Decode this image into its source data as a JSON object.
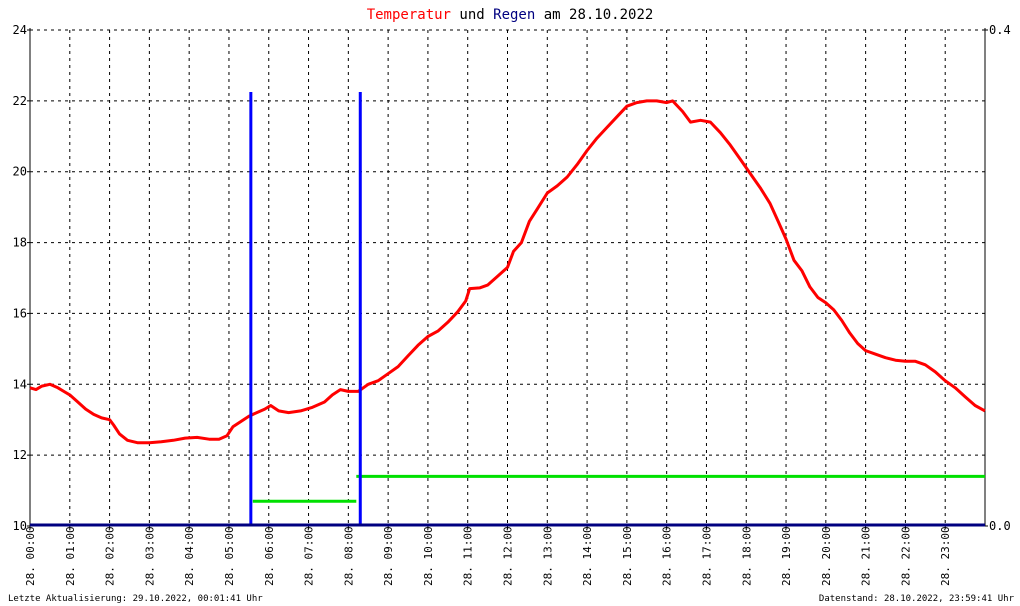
{
  "chart_data": {
    "type": "line",
    "title": {
      "parts": [
        {
          "text": "Temperatur",
          "color": "#ff0000"
        },
        {
          "text": " und ",
          "color": "#000000"
        },
        {
          "text": "Regen",
          "color": "#000080"
        },
        {
          "text": " am 28.10.2022",
          "color": "#000000"
        }
      ]
    },
    "grid": true,
    "y_left": {
      "range": [
        10,
        24
      ],
      "ticks": [
        "10",
        "12",
        "14",
        "16",
        "18",
        "20",
        "22",
        "24"
      ]
    },
    "y_right": {
      "range": [
        0.0,
        0.4
      ],
      "ticks": [
        "0.0",
        "0.4"
      ]
    },
    "x": {
      "range_hours": [
        0,
        24
      ],
      "ticks": [
        "28. 00:00",
        "28. 01:00",
        "28. 02:00",
        "28. 03:00",
        "28. 04:00",
        "28. 05:00",
        "28. 06:00",
        "28. 07:00",
        "28. 08:00",
        "28. 09:00",
        "28. 10:00",
        "28. 11:00",
        "28. 12:00",
        "28. 13:00",
        "28. 14:00",
        "28. 15:00",
        "28. 16:00",
        "28. 17:00",
        "28. 18:00",
        "28. 19:00",
        "28. 20:00",
        "28. 21:00",
        "28. 22:00",
        "28. 23:00"
      ]
    },
    "series": [
      {
        "kind": "temperature",
        "axis": "left",
        "color": "#ff0000",
        "points": [
          [
            0.0,
            13.9
          ],
          [
            0.15,
            13.85
          ],
          [
            0.3,
            13.95
          ],
          [
            0.5,
            14.0
          ],
          [
            0.7,
            13.9
          ],
          [
            0.85,
            13.8
          ],
          [
            1.0,
            13.7
          ],
          [
            1.2,
            13.5
          ],
          [
            1.4,
            13.3
          ],
          [
            1.6,
            13.15
          ],
          [
            1.8,
            13.05
          ],
          [
            2.0,
            13.0
          ],
          [
            2.1,
            12.85
          ],
          [
            2.25,
            12.6
          ],
          [
            2.45,
            12.42
          ],
          [
            2.7,
            12.35
          ],
          [
            3.0,
            12.35
          ],
          [
            3.3,
            12.38
          ],
          [
            3.6,
            12.42
          ],
          [
            3.9,
            12.48
          ],
          [
            4.2,
            12.5
          ],
          [
            4.5,
            12.45
          ],
          [
            4.75,
            12.45
          ],
          [
            4.95,
            12.55
          ],
          [
            5.1,
            12.8
          ],
          [
            5.3,
            12.95
          ],
          [
            5.5,
            13.1
          ],
          [
            5.7,
            13.2
          ],
          [
            5.9,
            13.3
          ],
          [
            6.05,
            13.4
          ],
          [
            6.25,
            13.25
          ],
          [
            6.5,
            13.2
          ],
          [
            6.8,
            13.25
          ],
          [
            7.1,
            13.35
          ],
          [
            7.4,
            13.5
          ],
          [
            7.6,
            13.7
          ],
          [
            7.8,
            13.85
          ],
          [
            8.0,
            13.8
          ],
          [
            8.25,
            13.8
          ],
          [
            8.5,
            14.0
          ],
          [
            8.75,
            14.1
          ],
          [
            9.0,
            14.3
          ],
          [
            9.25,
            14.5
          ],
          [
            9.5,
            14.8
          ],
          [
            9.75,
            15.1
          ],
          [
            10.0,
            15.35
          ],
          [
            10.25,
            15.5
          ],
          [
            10.5,
            15.75
          ],
          [
            10.75,
            16.05
          ],
          [
            10.95,
            16.35
          ],
          [
            11.05,
            16.7
          ],
          [
            11.3,
            16.72
          ],
          [
            11.5,
            16.8
          ],
          [
            11.75,
            17.05
          ],
          [
            12.0,
            17.3
          ],
          [
            12.15,
            17.75
          ],
          [
            12.35,
            18.0
          ],
          [
            12.55,
            18.6
          ],
          [
            12.75,
            18.95
          ],
          [
            13.0,
            19.4
          ],
          [
            13.25,
            19.6
          ],
          [
            13.5,
            19.85
          ],
          [
            13.75,
            20.2
          ],
          [
            14.0,
            20.6
          ],
          [
            14.25,
            20.95
          ],
          [
            14.5,
            21.25
          ],
          [
            14.75,
            21.55
          ],
          [
            15.0,
            21.85
          ],
          [
            15.25,
            21.95
          ],
          [
            15.5,
            22.0
          ],
          [
            15.75,
            22.0
          ],
          [
            16.0,
            21.95
          ],
          [
            16.15,
            22.0
          ],
          [
            16.4,
            21.7
          ],
          [
            16.6,
            21.4
          ],
          [
            16.85,
            21.45
          ],
          [
            17.1,
            21.4
          ],
          [
            17.35,
            21.1
          ],
          [
            17.6,
            20.75
          ],
          [
            17.85,
            20.35
          ],
          [
            18.1,
            19.95
          ],
          [
            18.35,
            19.55
          ],
          [
            18.6,
            19.1
          ],
          [
            18.8,
            18.6
          ],
          [
            19.0,
            18.1
          ],
          [
            19.2,
            17.5
          ],
          [
            19.4,
            17.2
          ],
          [
            19.6,
            16.75
          ],
          [
            19.8,
            16.45
          ],
          [
            20.0,
            16.3
          ],
          [
            20.2,
            16.1
          ],
          [
            20.4,
            15.8
          ],
          [
            20.6,
            15.45
          ],
          [
            20.8,
            15.15
          ],
          [
            21.0,
            14.95
          ],
          [
            21.25,
            14.85
          ],
          [
            21.5,
            14.75
          ],
          [
            21.75,
            14.68
          ],
          [
            22.0,
            14.65
          ],
          [
            22.25,
            14.65
          ],
          [
            22.5,
            14.55
          ],
          [
            22.75,
            14.35
          ],
          [
            23.0,
            14.1
          ],
          [
            23.25,
            13.9
          ],
          [
            23.5,
            13.65
          ],
          [
            23.75,
            13.4
          ],
          [
            24.0,
            13.25
          ]
        ]
      },
      {
        "kind": "rain_total",
        "axis": "right",
        "color": "#00e000",
        "segments": [
          {
            "x": [
              5.6,
              8.2
            ],
            "value": 0.02
          },
          {
            "x": [
              8.2,
              24.0
            ],
            "value": 0.04
          }
        ]
      },
      {
        "kind": "rain_events",
        "axis": "right",
        "color": "#0000ff",
        "bars": [
          {
            "x": 5.55,
            "value": 0.35
          },
          {
            "x": 8.3,
            "value": 0.35
          }
        ]
      }
    ]
  },
  "footer": {
    "left": "Letzte Aktualisierung: 29.10.2022, 00:01:41 Uhr",
    "right": "Datenstand: 28.10.2022, 23:59:41 Uhr"
  }
}
